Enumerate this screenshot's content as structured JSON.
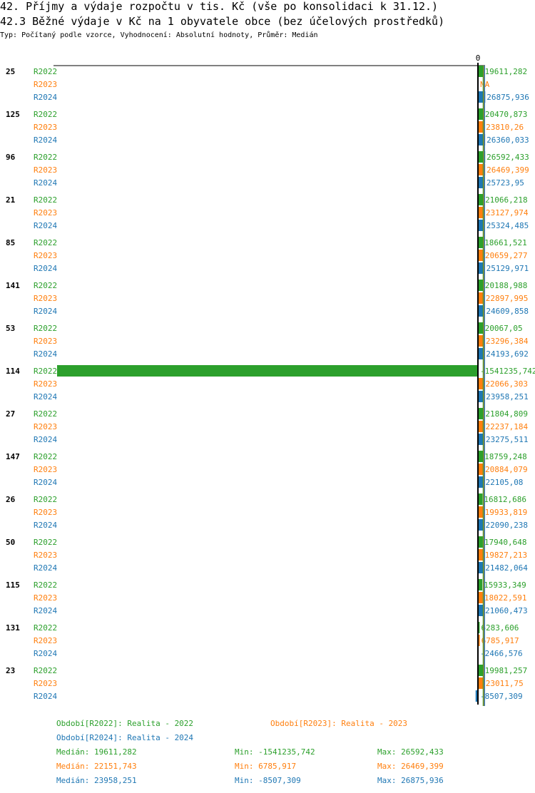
{
  "header": {
    "title": "42. Příjmy a výdaje rozpočtu v tis. Kč (vše po konsolidaci k 31.12.)",
    "subtitle": "42.3 Běžné výdaje v Kč na 1 obyvatele obce (bez účelových prostředků)",
    "info": "Typ: Počítaný podle vzorce, Vyhodnocení: Absolutní hodnoty, Průměr: Medián"
  },
  "chart_data": {
    "type": "bar",
    "orientation": "horizontal",
    "zero_label": "0",
    "colors": {
      "R2022": "#2ca02c",
      "R2023": "#ff7f0e",
      "R2024": "#1f77b4"
    },
    "series_names": [
      "R2022",
      "R2023",
      "R2024"
    ],
    "groups": [
      {
        "id": "25",
        "values": [
          "19611,282",
          "NA",
          "26875,936"
        ]
      },
      {
        "id": "125",
        "values": [
          "20470,873",
          "23810,26",
          "26360,033"
        ]
      },
      {
        "id": "96",
        "values": [
          "26592,433",
          "26469,399",
          "25723,95"
        ]
      },
      {
        "id": "21",
        "values": [
          "21066,218",
          "23127,974",
          "25324,485"
        ]
      },
      {
        "id": "85",
        "values": [
          "18661,521",
          "20659,277",
          "25129,971"
        ]
      },
      {
        "id": "141",
        "values": [
          "20188,988",
          "22897,995",
          "24609,858"
        ]
      },
      {
        "id": "53",
        "values": [
          "20067,05",
          "23296,384",
          "24193,692"
        ]
      },
      {
        "id": "114",
        "values": [
          "-1541235,742",
          "22066,303",
          "23958,251"
        ]
      },
      {
        "id": "27",
        "values": [
          "21804,809",
          "22237,184",
          "23275,511"
        ]
      },
      {
        "id": "147",
        "values": [
          "18759,248",
          "20884,079",
          "22105,08"
        ]
      },
      {
        "id": "26",
        "values": [
          "16812,686",
          "19933,819",
          "22090,238"
        ]
      },
      {
        "id": "50",
        "values": [
          "17940,648",
          "19827,213",
          "21482,064"
        ]
      },
      {
        "id": "115",
        "values": [
          "15933,349",
          "18022,591",
          "21060,473"
        ]
      },
      {
        "id": "131",
        "values": [
          "6283,606",
          "6785,917",
          "-2466,576"
        ]
      },
      {
        "id": "23",
        "values": [
          "19981,257",
          "23011,75",
          "-8507,309"
        ]
      }
    ],
    "medians": {
      "R2022": "19611,282",
      "R2023": "22151,743",
      "R2024": "23958,251"
    },
    "xlim": [
      -1541235.742,
      26875.936
    ]
  },
  "legend": {
    "periods": [
      "Období[R2022]: Realita - 2022",
      "Období[R2023]: Realita - 2023",
      "Období[R2024]: Realita - 2024"
    ],
    "stats": [
      {
        "median": "Medián: 19611,282",
        "min": "Min: -1541235,742",
        "max": "Max: 26592,433"
      },
      {
        "median": "Medián: 22151,743",
        "min": "Min: 6785,917",
        "max": "Max: 26469,399"
      },
      {
        "median": "Medián: 23958,251",
        "min": "Min: -8507,309",
        "max": "Max: 26875,936"
      }
    ]
  }
}
